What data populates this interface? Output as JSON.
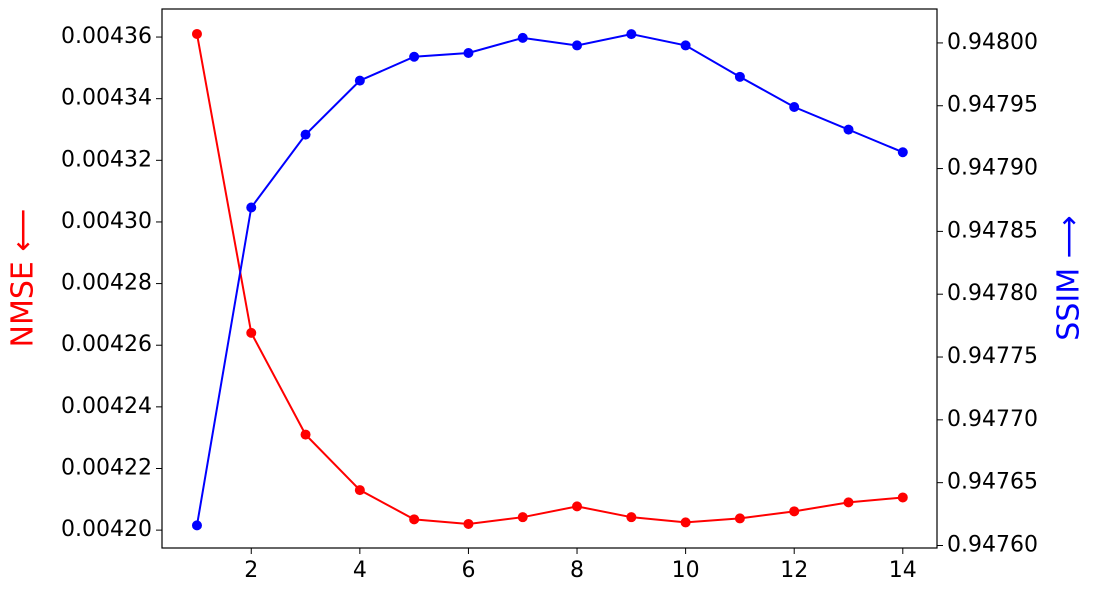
{
  "chart_data": {
    "type": "line",
    "x": [
      1,
      2,
      3,
      4,
      5,
      6,
      7,
      8,
      9,
      10,
      11,
      12,
      13,
      14
    ],
    "series": [
      {
        "name": "NMSE",
        "color": "#ff0000",
        "axis": "y",
        "values": [
          0.004361,
          0.004264,
          0.004231,
          0.004213,
          0.0042035,
          0.004202,
          0.0042042,
          0.0042077,
          0.0042042,
          0.0042025,
          0.0042038,
          0.0042061,
          0.004209,
          0.0042106
        ]
      },
      {
        "name": "SSIM",
        "color": "#0000ff",
        "axis": "y2",
        "values": [
          0.947616,
          0.947869,
          0.947927,
          0.94797,
          0.947989,
          0.947992,
          0.948004,
          0.947998,
          0.948007,
          0.947998,
          0.947973,
          0.947949,
          0.947931,
          0.947913
        ]
      }
    ],
    "ylabel": "NMSE ⟵",
    "y2label": "SSIM ⟶",
    "xlim": [
      0.356,
      14.63
    ],
    "xticks": [
      2,
      4,
      6,
      8,
      10,
      12,
      14
    ],
    "ylim": [
      0.0041942,
      0.0043691
    ],
    "yticks": [
      {
        "value": 0.0042,
        "label": "0.00420"
      },
      0.00422,
      0.00424,
      0.00426,
      0.00428,
      {
        "value": 0.0043,
        "label": "0.00430"
      },
      0.00432,
      0.00434,
      0.00436
    ],
    "y2lim": [
      0.947598,
      0.948027
    ],
    "y2ticks": [
      {
        "value": 0.9476,
        "label": "0.94760"
      },
      0.94765,
      {
        "value": 0.9477,
        "label": "0.94770"
      },
      0.94775,
      {
        "value": 0.9478,
        "label": "0.94780"
      },
      0.94785,
      {
        "value": 0.9479,
        "label": "0.94790"
      },
      0.94795,
      {
        "value": 0.948,
        "label": "0.94800"
      }
    ]
  }
}
